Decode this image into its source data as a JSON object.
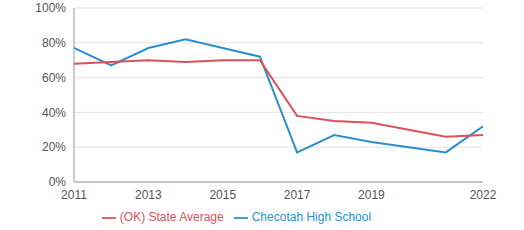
{
  "chart_data": {
    "type": "line",
    "x": [
      2011,
      2012,
      2013,
      2014,
      2015,
      2016,
      2017,
      2018,
      2019,
      2020,
      2021,
      2022
    ],
    "series": [
      {
        "name": "Checotah High School",
        "color": "#2b8fcb",
        "values": [
          77,
          67,
          77,
          82,
          77,
          72,
          17,
          27,
          23,
          20,
          17,
          32
        ]
      },
      {
        "name": "(OK) State Average",
        "color": "#d9525a",
        "values": [
          68,
          69,
          70,
          69,
          70,
          70,
          38,
          35,
          34,
          30,
          26,
          27
        ]
      }
    ],
    "xlim": [
      2011,
      2022
    ],
    "xticks": [
      2011,
      2013,
      2015,
      2017,
      2019,
      2022
    ],
    "ylim": [
      0,
      100
    ],
    "yticks": [
      {
        "value": 0,
        "label": "0%"
      },
      {
        "value": 20,
        "label": "20%"
      },
      {
        "value": 40,
        "label": "40%"
      },
      {
        "value": 60,
        "label": "60%"
      },
      {
        "value": 80,
        "label": "80%"
      },
      {
        "value": 100,
        "label": "100%"
      }
    ],
    "grid": true,
    "legend": "bottom"
  }
}
